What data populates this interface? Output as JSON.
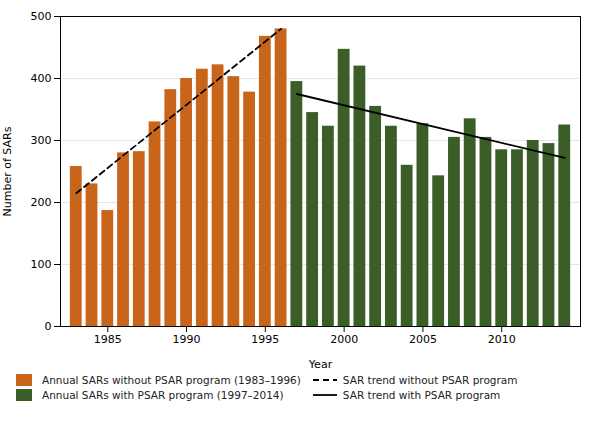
{
  "chart_data": {
    "type": "bar",
    "xlabel": "Year",
    "ylabel": "Number of SARs",
    "xlim": [
      1982.0,
      2015.0
    ],
    "xticks": [
      1985,
      1990,
      1995,
      2000,
      2005,
      2010
    ],
    "ylim": [
      0,
      500
    ],
    "yticks": [
      0,
      100,
      200,
      300,
      400,
      500
    ],
    "grid": true,
    "legend": "lower left",
    "series": [
      {
        "name": "Annual SARs without PSAR program (1983–1996)",
        "type": "bar",
        "color": "#C8651B",
        "x": [
          1983,
          1984,
          1985,
          1986,
          1987,
          1988,
          1989,
          1990,
          1991,
          1992,
          1993,
          1994,
          1995,
          1996
        ],
        "values": [
          258,
          230,
          187,
          280,
          282,
          330,
          382,
          400,
          415,
          422,
          403,
          378,
          468,
          480
        ]
      },
      {
        "name": "SAR trend without PSAR program",
        "type": "line",
        "color": "black",
        "line_style": "dashed",
        "x": [
          1983,
          1996
        ],
        "values": [
          215,
          480
        ]
      },
      {
        "name": "Annual SARs with PSAR program (1997–2014)",
        "type": "bar",
        "color": "#3B5E28",
        "x": [
          1997,
          1998,
          1999,
          2000,
          2001,
          2002,
          2003,
          2004,
          2005,
          2006,
          2007,
          2008,
          2009,
          2010,
          2011,
          2012,
          2013,
          2014
        ],
        "values": [
          395,
          345,
          323,
          447,
          420,
          355,
          323,
          260,
          327,
          243,
          305,
          335,
          305,
          285,
          285,
          300,
          295,
          325
        ]
      },
      {
        "name": "SAR trend with PSAR program",
        "type": "line",
        "color": "black",
        "line_style": "solid",
        "x": [
          1997,
          2014
        ],
        "values": [
          375,
          272
        ]
      }
    ]
  }
}
